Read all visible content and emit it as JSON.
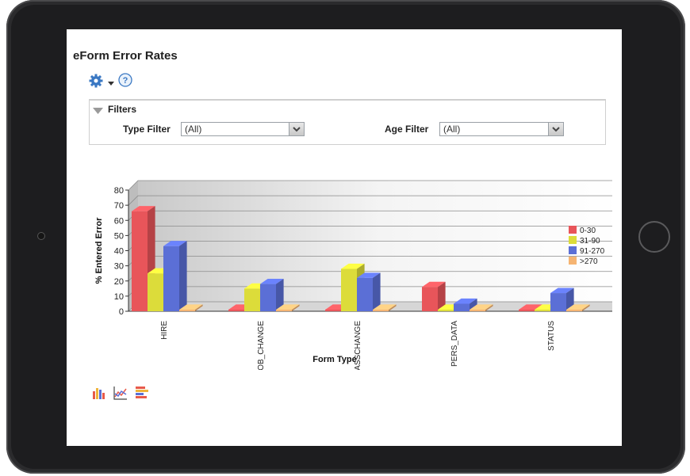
{
  "page": {
    "title": "eForm Error Rates"
  },
  "toolbar": {
    "gear_icon": "gear-icon",
    "help_icon": "help-icon"
  },
  "filters": {
    "title": "Filters",
    "type_filter": {
      "label": "Type Filter",
      "value": "(All)"
    },
    "age_filter": {
      "label": "Age Filter",
      "value": "(All)"
    }
  },
  "chart_data": {
    "type": "bar",
    "title": "",
    "xlabel": "Form Type",
    "ylabel": "% Entered Error",
    "ylim": [
      0,
      80
    ],
    "yticks": [
      "0",
      "10",
      "20",
      "30",
      "40",
      "50",
      "60",
      "70",
      "80"
    ],
    "categories": [
      "HIRE",
      "JOB_CHANGE",
      "MASSCHANGE",
      "PERS_DATA",
      "STATUS"
    ],
    "series": [
      {
        "name": "0-30",
        "color": "#e8555a",
        "values": [
          66,
          0,
          0,
          16,
          0
        ]
      },
      {
        "name": "31-90",
        "color": "#dcdc3a",
        "values": [
          25,
          15,
          28,
          0,
          0
        ]
      },
      {
        "name": "91-270",
        "color": "#5b6fd6",
        "values": [
          43,
          18,
          22,
          5,
          12
        ]
      },
      {
        "name": ">270",
        "color": "#f5b472",
        "values": [
          0,
          0,
          0,
          0,
          0
        ]
      }
    ],
    "grid": true,
    "legend_position": "right"
  },
  "chart_icons": [
    "bar-chart-icon",
    "line-chart-icon",
    "horizontal-bar-chart-icon"
  ]
}
